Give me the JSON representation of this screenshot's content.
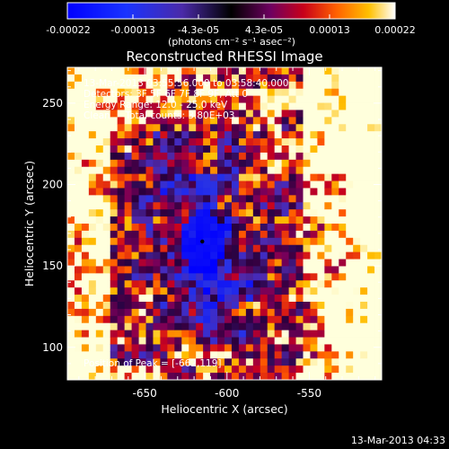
{
  "chart_data": {
    "type": "heatmap",
    "title": "Reconstructed RHESSI Image",
    "xlabel": "Heliocentric X (arcsec)",
    "ylabel": "Heliocentric Y (arcsec)",
    "xlim": [
      -697,
      -506
    ],
    "ylim": [
      80,
      272
    ],
    "xticks": [
      -650,
      -600,
      -550
    ],
    "yticks": [
      100,
      150,
      200,
      250
    ],
    "grid": false,
    "colorbar": {
      "position": "top",
      "range": [
        -0.00022,
        0.00022
      ],
      "tick_labels": [
        "-0.00022",
        "-0.00013",
        "-4.3e-05",
        "4.3e-05",
        "0.00013",
        "0.00022"
      ],
      "unit_label": "(photons cm⁻² s⁻¹ asec⁻²)"
    },
    "annotations": [
      "13-Mar-2013 03:55:56.000 to 03:58:40.000",
      "Detectors: 3F 5F 6F 7F 8F 9F, Att 0",
      "Energy Range: 12.0 - 25.0 keV",
      "Clean     Total counts: 3.80E+03"
    ],
    "peak_label": "Position of Peak = [-662,119]",
    "peak": {
      "x": -662,
      "y": 119
    },
    "marker": {
      "x": -615,
      "y": 165
    },
    "timestamp": "13-Mar-2013 04:33"
  },
  "colors": {
    "background": "#000000",
    "low": "#0000ff",
    "mid": "#000000",
    "high": "#ffffff"
  }
}
